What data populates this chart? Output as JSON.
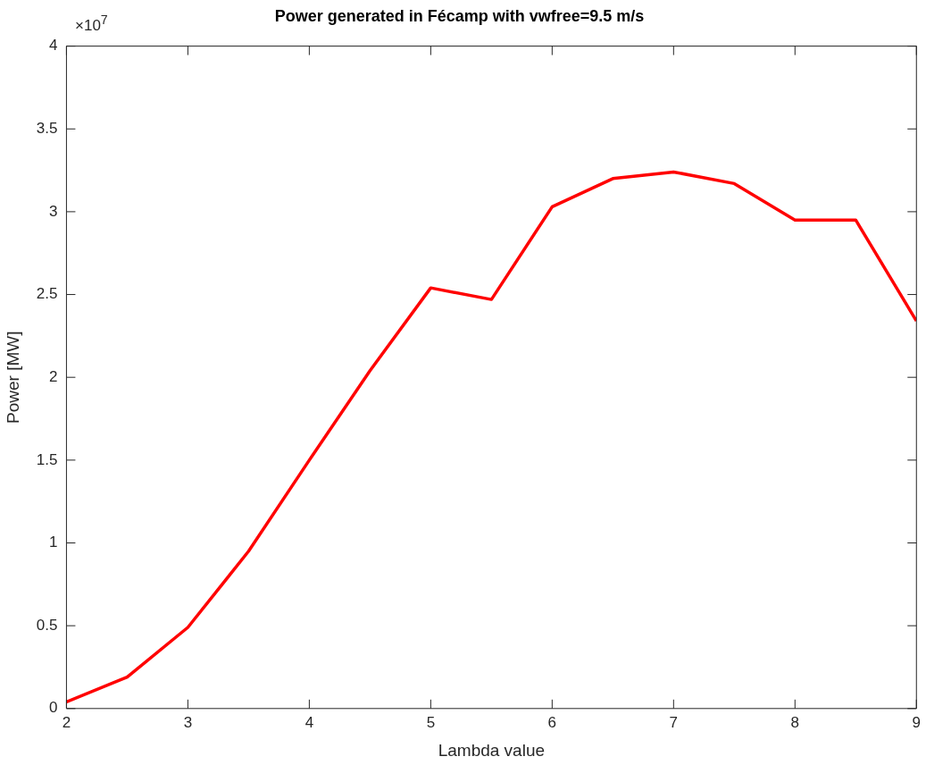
{
  "chart_data": {
    "type": "line",
    "title": "Power generated in Fécamp with vwfree=9.5 m/s",
    "xlabel": "Lambda value",
    "ylabel": "Power [MW]",
    "annotations": [
      "×10$^{7}$"
    ],
    "x": [
      2,
      2.5,
      3,
      3.5,
      4,
      4.5,
      5,
      5.5,
      6,
      6.5,
      7,
      7.5,
      8,
      8.5,
      9
    ],
    "series": [
      {
        "color": "#ff0000",
        "values": [
          0.04,
          0.19,
          0.49,
          0.95,
          1.5,
          2.04,
          2.54,
          2.47,
          3.03,
          3.2,
          3.24,
          3.17,
          2.95,
          2.95,
          2.34
        ]
      }
    ],
    "xlim": [
      2,
      9
    ],
    "xticks": [
      2,
      3,
      4,
      5,
      6,
      7,
      8,
      9
    ],
    "ylim": [
      0,
      4
    ],
    "yticks": [
      0,
      0.5,
      1,
      1.5,
      2,
      2.5,
      3,
      3.5,
      4
    ],
    "grid": false,
    "legend": false,
    "marker": "none",
    "line_style": "solid"
  }
}
